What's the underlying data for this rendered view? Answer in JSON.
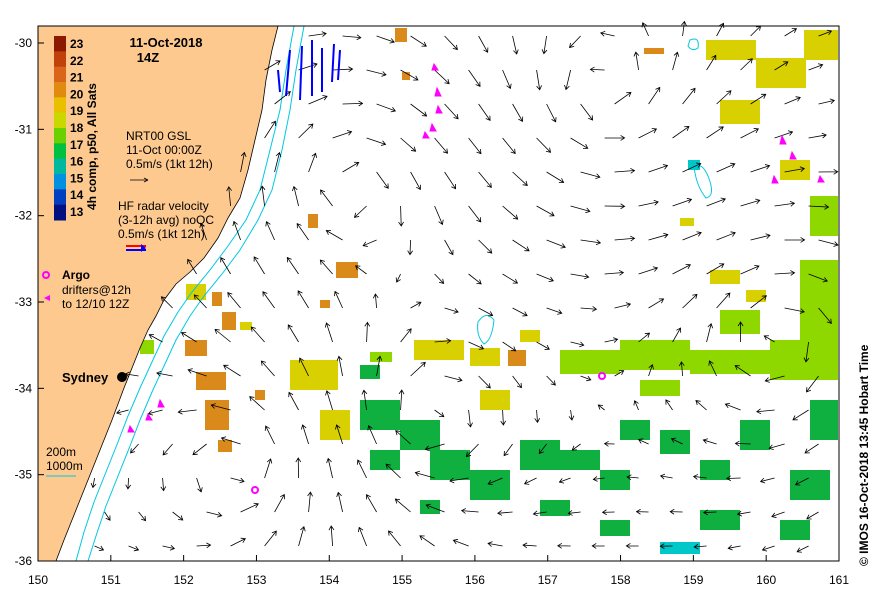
{
  "map": {
    "title_date": "11-Oct-2018",
    "title_time": "14Z",
    "x_ticks": [
      "150",
      "151",
      "152",
      "153",
      "154",
      "155",
      "156",
      "157",
      "158",
      "159",
      "160",
      "161"
    ],
    "y_ticks": [
      "-30",
      "-31",
      "-32",
      "-33",
      "-34",
      "-35",
      "-36"
    ],
    "colorbar": {
      "label": "4h comp, p50, All Sats",
      "ticks": [
        "23",
        "22",
        "21",
        "20",
        "19",
        "18",
        "17",
        "16",
        "15",
        "14",
        "13"
      ],
      "colors": [
        "#8b1a00",
        "#c0410a",
        "#d9641a",
        "#e08a10",
        "#e8c000",
        "#c8d800",
        "#6ad000",
        "#00c040",
        "#00b8a0",
        "#0090e0",
        "#0040c0",
        "#001080"
      ]
    },
    "legend_gsl": {
      "line1": "NRT00 GSL",
      "line2": "11-Oct 00:00Z",
      "line3": "0.5m/s (1kt 12h)"
    },
    "legend_hf": {
      "line1": "HF radar velocity",
      "line2": "(3-12h avg) noQC",
      "line3": "0.5m/s (1kt 12h)"
    },
    "legend_argo": {
      "label": "Argo",
      "drifters1": "drifters@12h",
      "drifters2": "to 12/10 12Z"
    },
    "city": "Sydney",
    "depth_legend": {
      "a": "200m",
      "b": "1000m"
    },
    "credit": "© IMOS 16-Oct-2018 13:45 Hobart Time",
    "colors": {
      "land": "#fdc98f",
      "isobath": "#00c8e0",
      "argo": "#ff00ff",
      "hf_arrow": "#0000ff"
    }
  }
}
